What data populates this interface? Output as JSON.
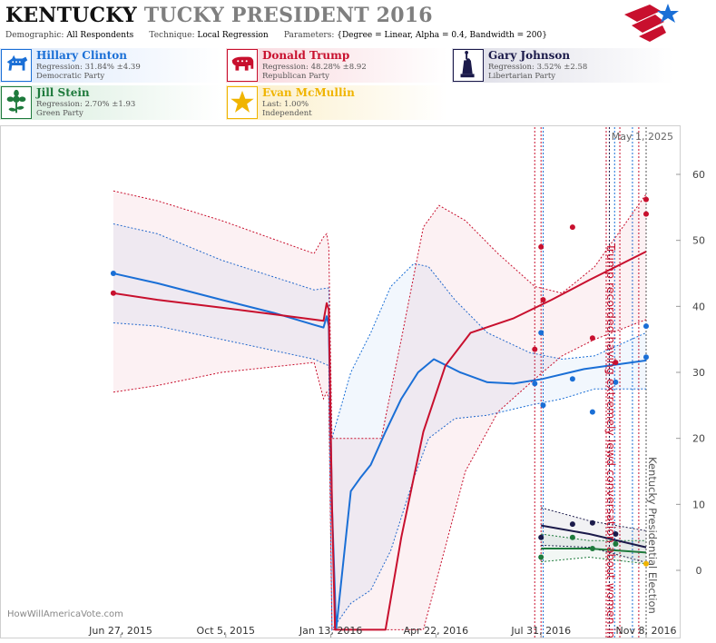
{
  "header": {
    "title_state": "KENTUCKY",
    "title_rest": "TUCKY PRESIDENT 2016",
    "demographic_label": "Demographic:",
    "demographic_value": "All Respondents",
    "technique_label": "Technique:",
    "technique_value": "Local Regression",
    "parameters_label": "Parameters:",
    "parameters_value": "{Degree = Linear, Alpha = 0.4, Bandwidth = 200}"
  },
  "candidates": [
    {
      "name": "Hillary Clinton",
      "stat": "Regression: 31.84% ±4.39",
      "party": "Democratic Party",
      "color": "#1a6fd6",
      "icon": "donkey-icon"
    },
    {
      "name": "Donald Trump",
      "stat": "Regression: 48.28% ±8.92",
      "party": "Republican Party",
      "color": "#c8102e",
      "icon": "elephant-icon"
    },
    {
      "name": "Gary Johnson",
      "stat": "Regression: 3.52% ±2.58",
      "party": "Libertarian Party",
      "color": "#1b1a4a",
      "icon": "liberty-statue-icon"
    },
    {
      "name": "Jill Stein",
      "stat": "Regression: 2.70% ±1.93",
      "party": "Green Party",
      "color": "#1e7a3c",
      "icon": "flower-icon"
    },
    {
      "name": "Evan McMullin",
      "stat": "Last: 1.00%",
      "party": "Independent",
      "color": "#f0b400",
      "icon": "star-icon"
    }
  ],
  "chart_data": {
    "type": "line",
    "date_label": "May 1, 2025",
    "watermark": "HowWillAmericaVote.com",
    "x_ticks": [
      "Jun 27, 2015",
      "Oct 5, 2015",
      "Jan 13, 2016",
      "Apr 22, 2016",
      "Jul 31, 2016",
      "Nov 8, 2016"
    ],
    "y_ticks": [
      0,
      10,
      20,
      30,
      40,
      50,
      60
    ],
    "ylim": [
      -8,
      66
    ],
    "annotations": [
      {
        "text": "Trump recorded having extremely lewd conversation about women in 2005",
        "date": "Oct 7, 2016"
      },
      {
        "text": "Kentucky Presidential Election",
        "date": "Nov 8, 2016"
      }
    ],
    "series": [
      {
        "name": "Hillary Clinton",
        "color": "#1a6fd6",
        "line": [
          [
            "2015-06-20",
            45
          ],
          [
            "2015-08-01",
            43.5
          ],
          [
            "2015-10-01",
            41
          ],
          [
            "2015-11-20",
            39
          ],
          [
            "2015-12-28",
            37.2
          ],
          [
            "2016-01-06",
            36.8
          ],
          [
            "2016-01-09",
            38.5
          ],
          [
            "2016-01-11",
            37
          ],
          [
            "2016-01-14",
            10
          ],
          [
            "2016-01-18",
            -9
          ],
          [
            "2016-02-01",
            12
          ],
          [
            "2016-02-10",
            14
          ],
          [
            "2016-02-20",
            16
          ],
          [
            "2016-03-05",
            21
          ],
          [
            "2016-03-20",
            26
          ],
          [
            "2016-04-05",
            30
          ],
          [
            "2016-04-20",
            32
          ],
          [
            "2016-05-15",
            30
          ],
          [
            "2016-06-10",
            28.5
          ],
          [
            "2016-07-05",
            28.3
          ],
          [
            "2016-08-01",
            29
          ],
          [
            "2016-09-10",
            30.5
          ],
          [
            "2016-11-08",
            31.8
          ]
        ],
        "band": [
          [
            "2015-06-20",
            52.5,
            37.5
          ],
          [
            "2015-08-01",
            51,
            37
          ],
          [
            "2015-10-01",
            47,
            35
          ],
          [
            "2015-12-28",
            42.5,
            32
          ],
          [
            "2016-01-11",
            42.8,
            31
          ],
          [
            "2016-01-14",
            20,
            -9
          ],
          [
            "2016-02-01",
            30,
            -5
          ],
          [
            "2016-02-20",
            36,
            -3
          ],
          [
            "2016-03-10",
            43,
            3
          ],
          [
            "2016-04-01",
            46.5,
            14
          ],
          [
            "2016-04-15",
            46,
            20
          ],
          [
            "2016-05-10",
            41,
            23
          ],
          [
            "2016-06-10",
            36,
            23.5
          ],
          [
            "2016-07-20",
            33,
            25
          ],
          [
            "2016-08-20",
            32,
            26
          ],
          [
            "2016-09-20",
            32.5,
            27.5
          ],
          [
            "2016-11-08",
            36,
            27.5
          ]
        ],
        "points": [
          [
            "2015-06-20",
            45
          ],
          [
            "2016-07-25",
            28.3
          ],
          [
            "2016-07-31",
            36
          ],
          [
            "2016-08-02",
            25
          ],
          [
            "2016-08-30",
            29
          ],
          [
            "2016-09-18",
            24
          ],
          [
            "2016-10-10",
            28.5
          ],
          [
            "2016-11-08",
            37
          ],
          [
            "2016-11-08",
            32.3
          ]
        ]
      },
      {
        "name": "Donald Trump",
        "color": "#c8102e",
        "line": [
          [
            "2015-06-20",
            42
          ],
          [
            "2015-08-01",
            41
          ],
          [
            "2015-10-01",
            39.8
          ],
          [
            "2015-11-20",
            38.8
          ],
          [
            "2015-12-28",
            38
          ],
          [
            "2016-01-06",
            37.8
          ],
          [
            "2016-01-09",
            40.5
          ],
          [
            "2016-01-11",
            39.5
          ],
          [
            "2016-01-14",
            10
          ],
          [
            "2016-01-17",
            -9
          ],
          [
            "2016-03-05",
            -9
          ],
          [
            "2016-03-20",
            5
          ],
          [
            "2016-04-10",
            21
          ],
          [
            "2016-05-01",
            31
          ],
          [
            "2016-05-25",
            36
          ],
          [
            "2016-07-05",
            38.2
          ],
          [
            "2016-08-10",
            41
          ],
          [
            "2016-09-15",
            44
          ],
          [
            "2016-11-08",
            48.3
          ]
        ],
        "band": [
          [
            "2015-06-20",
            57.5,
            27
          ],
          [
            "2015-08-01",
            56,
            28
          ],
          [
            "2015-10-01",
            53,
            30
          ],
          [
            "2015-12-28",
            48,
            31.5
          ],
          [
            "2016-01-06",
            50.5,
            26
          ],
          [
            "2016-01-09",
            51,
            27
          ],
          [
            "2016-01-11",
            49,
            26
          ],
          [
            "2016-01-14",
            20,
            -9
          ],
          [
            "2016-03-01",
            20,
            -9
          ],
          [
            "2016-03-20",
            35,
            -9
          ],
          [
            "2016-04-10",
            52,
            -9
          ],
          [
            "2016-04-25",
            55.3,
            0
          ],
          [
            "2016-05-20",
            53,
            15
          ],
          [
            "2016-06-20",
            48,
            24
          ],
          [
            "2016-07-25",
            43,
            29
          ],
          [
            "2016-08-20",
            42,
            32.5
          ],
          [
            "2016-09-20",
            46,
            35
          ],
          [
            "2016-11-08",
            57,
            38
          ]
        ],
        "points": [
          [
            "2015-06-20",
            42
          ],
          [
            "2016-07-25",
            33.5
          ],
          [
            "2016-07-31",
            49
          ],
          [
            "2016-08-02",
            41
          ],
          [
            "2016-08-30",
            52
          ],
          [
            "2016-09-18",
            35.2
          ],
          [
            "2016-10-10",
            31.5
          ],
          [
            "2016-11-08",
            56.2
          ],
          [
            "2016-11-08",
            54
          ]
        ]
      },
      {
        "name": "Gary Johnson",
        "color": "#1b1a4a",
        "line": [
          [
            "2016-07-31",
            6.8
          ],
          [
            "2016-09-15",
            5.5
          ],
          [
            "2016-11-08",
            3.5
          ]
        ],
        "band": [
          [
            "2016-07-31",
            9.5,
            3.8
          ],
          [
            "2016-09-15",
            7.5,
            3.5
          ],
          [
            "2016-11-08",
            6,
            1.2
          ]
        ],
        "points": [
          [
            "2016-07-31",
            5
          ],
          [
            "2016-08-30",
            7
          ],
          [
            "2016-09-18",
            7.2
          ],
          [
            "2016-10-10",
            5.5
          ]
        ]
      },
      {
        "name": "Jill Stein",
        "color": "#1e7a3c",
        "line": [
          [
            "2016-07-31",
            3.3
          ],
          [
            "2016-09-15",
            3.3
          ],
          [
            "2016-11-08",
            2.7
          ]
        ],
        "band": [
          [
            "2016-07-31",
            5.5,
            1.3
          ],
          [
            "2016-09-15",
            4.5,
            2
          ],
          [
            "2016-11-08",
            4.5,
            1
          ]
        ],
        "points": [
          [
            "2016-07-31",
            2
          ],
          [
            "2016-08-30",
            5
          ],
          [
            "2016-09-18",
            3.3
          ],
          [
            "2016-10-10",
            4
          ]
        ]
      },
      {
        "name": "Evan McMullin",
        "color": "#f0b400",
        "line": [],
        "band": [],
        "points": [
          [
            "2016-11-08",
            1
          ]
        ]
      }
    ],
    "vlines": [
      {
        "date": "2016-07-25",
        "color": "#c8102e"
      },
      {
        "date": "2016-07-31",
        "color": "#c8102e"
      },
      {
        "date": "2016-08-02",
        "color": "#1a6fd6"
      },
      {
        "date": "2016-10-01",
        "color": "#c8102e"
      },
      {
        "date": "2016-10-04",
        "color": "#1b1a4a"
      },
      {
        "date": "2016-10-09",
        "color": "#1a6fd6"
      },
      {
        "date": "2016-10-14",
        "color": "#c8102e"
      },
      {
        "date": "2016-10-26",
        "color": "#1a6fd6"
      },
      {
        "date": "2016-11-01",
        "color": "#c8102e"
      },
      {
        "date": "2016-11-08",
        "color": "#555555"
      }
    ]
  }
}
